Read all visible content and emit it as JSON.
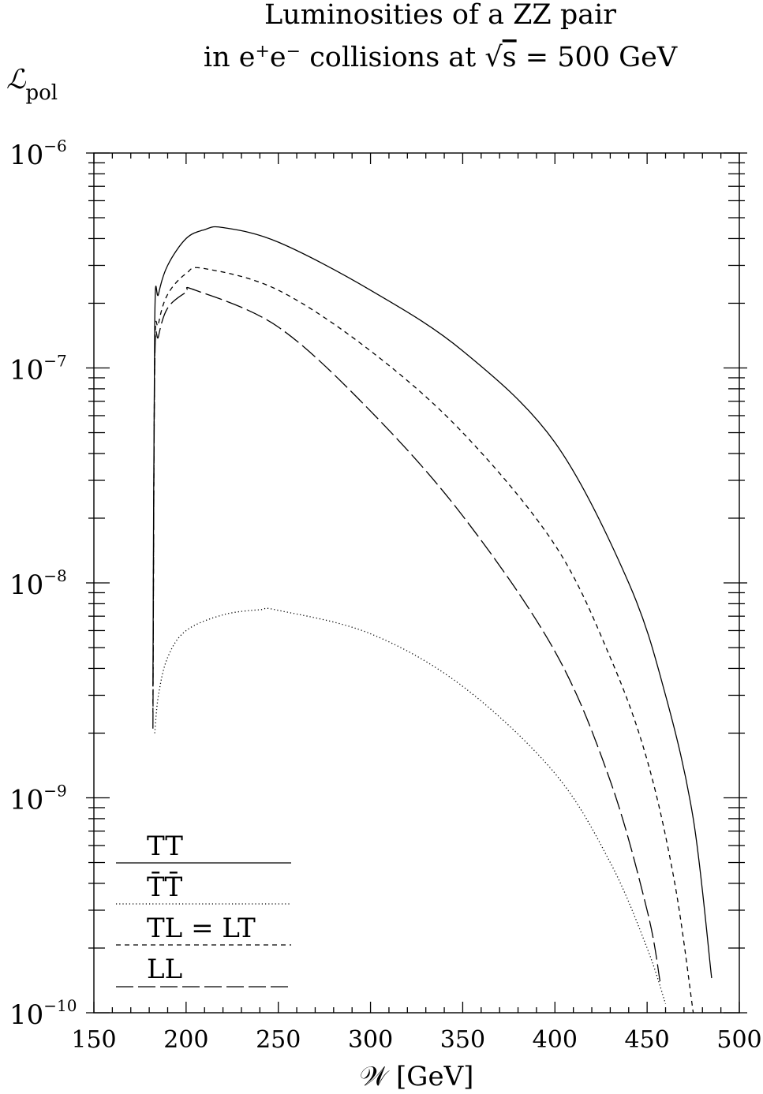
{
  "chart_data": {
    "type": "line",
    "title_line1": "Luminosities of a ZZ pair",
    "title_line2_parts": {
      "prefix": "in e",
      "sup1": "+",
      "mid": "e",
      "sup2": "−",
      "suffix": " collisions at ",
      "sqrt_symbol": "√",
      "sqrt_arg": "s",
      "tail": " = 500 GeV"
    },
    "ylabel": {
      "main": "ℒ",
      "sub": "pol"
    },
    "xlabel": "𝒲 [GeV]",
    "xscale": "linear",
    "yscale": "log",
    "xlim": [
      150,
      500
    ],
    "ylim": [
      1e-10,
      1e-06
    ],
    "x_ticks": [
      "150",
      "200",
      "250",
      "300",
      "350",
      "400",
      "450",
      "500"
    ],
    "y_ticks": [
      {
        "base": "10",
        "exp": "-6"
      },
      {
        "base": "10",
        "exp": "-7"
      },
      {
        "base": "10",
        "exp": "-8"
      },
      {
        "base": "10",
        "exp": "-9"
      },
      {
        "base": "10",
        "exp": "-10"
      }
    ],
    "legend_position": "lower-left",
    "series": [
      {
        "name": "TT",
        "style": "solid",
        "points": [
          [
            182,
            3.3e-09
          ],
          [
            183,
            1.65e-07
          ],
          [
            185,
            2.2e-07
          ],
          [
            190,
            3e-07
          ],
          [
            200,
            4e-07
          ],
          [
            210,
            4.4e-07
          ],
          [
            220,
            4.5e-07
          ],
          [
            250,
            3.85e-07
          ],
          [
            300,
            2.3e-07
          ],
          [
            350,
            1.2e-07
          ],
          [
            400,
            4.5e-08
          ],
          [
            440,
            1e-08
          ],
          [
            460,
            3e-09
          ],
          [
            475,
            8e-10
          ],
          [
            485,
            1.45e-10
          ]
        ]
      },
      {
        "name": "T̄T̄",
        "style": "dotted",
        "points": [
          [
            183,
            2e-09
          ],
          [
            185,
            3e-09
          ],
          [
            190,
            4.5e-09
          ],
          [
            200,
            6e-09
          ],
          [
            220,
            7.1e-09
          ],
          [
            240,
            7.5e-09
          ],
          [
            250,
            7.45e-09
          ],
          [
            300,
            5.8e-09
          ],
          [
            350,
            3.3e-09
          ],
          [
            400,
            1.3e-09
          ],
          [
            430,
            5e-10
          ],
          [
            450,
            2e-10
          ],
          [
            460,
            1.1e-10
          ]
        ]
      },
      {
        "name": "TL = LT",
        "style": "dashed",
        "points": [
          [
            182,
            2.5e-09
          ],
          [
            183,
            1.1e-07
          ],
          [
            185,
            1.6e-07
          ],
          [
            190,
            2.2e-07
          ],
          [
            200,
            2.75e-07
          ],
          [
            210,
            2.9e-07
          ],
          [
            250,
            2.3e-07
          ],
          [
            300,
            1.2e-07
          ],
          [
            350,
            5e-08
          ],
          [
            400,
            1.5e-08
          ],
          [
            430,
            4.5e-09
          ],
          [
            450,
            1.5e-09
          ],
          [
            465,
            4e-10
          ],
          [
            475,
            1e-10
          ]
        ]
      },
      {
        "name": "LL",
        "style": "longdash",
        "points": [
          [
            182,
            2.1e-09
          ],
          [
            183,
            1e-07
          ],
          [
            185,
            1.4e-07
          ],
          [
            190,
            1.9e-07
          ],
          [
            200,
            2.25e-07
          ],
          [
            205,
            2.3e-07
          ],
          [
            250,
            1.55e-07
          ],
          [
            300,
            6.3e-08
          ],
          [
            350,
            2.05e-08
          ],
          [
            400,
            4.8e-09
          ],
          [
            430,
            1.2e-09
          ],
          [
            450,
            3e-10
          ],
          [
            457,
            1.4e-10
          ]
        ]
      }
    ],
    "legend_labels": {
      "tt": "TT",
      "tbar_tbar": "T̄T̄",
      "tl_lt": "TL = LT",
      "ll": "LL"
    }
  }
}
